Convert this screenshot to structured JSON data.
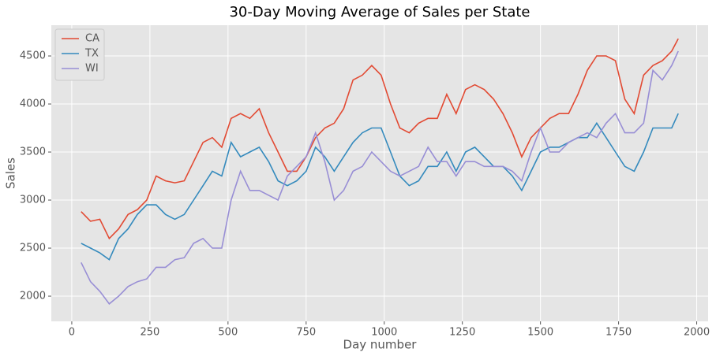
{
  "chart_data": {
    "type": "line",
    "title": "30-Day Moving Average of Sales per State",
    "x_label": "Day number",
    "y_label": "Sales",
    "x": [
      30,
      60,
      90,
      120,
      150,
      180,
      210,
      240,
      270,
      300,
      330,
      360,
      390,
      420,
      450,
      480,
      510,
      540,
      570,
      600,
      630,
      660,
      690,
      720,
      750,
      780,
      810,
      840,
      870,
      900,
      930,
      960,
      990,
      1020,
      1050,
      1080,
      1110,
      1140,
      1170,
      1200,
      1230,
      1260,
      1290,
      1320,
      1350,
      1380,
      1410,
      1440,
      1470,
      1500,
      1530,
      1560,
      1590,
      1620,
      1650,
      1680,
      1710,
      1740,
      1770,
      1800,
      1830,
      1860,
      1890,
      1920,
      1941
    ],
    "series": [
      {
        "name": "CA",
        "color": "#E24A33",
        "values": [
          2880,
          2780,
          2800,
          2600,
          2700,
          2850,
          2900,
          3000,
          3250,
          3200,
          3180,
          3200,
          3400,
          3600,
          3650,
          3550,
          3850,
          3900,
          3850,
          3950,
          3700,
          3500,
          3300,
          3300,
          3450,
          3650,
          3750,
          3800,
          3950,
          4250,
          4300,
          4400,
          4300,
          4000,
          3750,
          3700,
          3800,
          3850,
          3850,
          4100,
          3900,
          4150,
          4200,
          4150,
          4050,
          3900,
          3700,
          3450,
          3650,
          3750,
          3850,
          3900,
          3900,
          4100,
          4350,
          4500,
          4500,
          4450,
          4050,
          3900,
          4300,
          4400,
          4450,
          4550,
          4680
        ]
      },
      {
        "name": "TX",
        "color": "#348ABD",
        "values": [
          2550,
          2500,
          2450,
          2380,
          2600,
          2700,
          2850,
          2950,
          2950,
          2850,
          2800,
          2850,
          3000,
          3150,
          3300,
          3250,
          3600,
          3450,
          3500,
          3550,
          3400,
          3200,
          3150,
          3200,
          3300,
          3550,
          3450,
          3300,
          3450,
          3600,
          3700,
          3750,
          3750,
          3500,
          3250,
          3150,
          3200,
          3350,
          3350,
          3500,
          3300,
          3500,
          3550,
          3450,
          3350,
          3350,
          3250,
          3100,
          3300,
          3500,
          3550,
          3550,
          3600,
          3650,
          3650,
          3800,
          3650,
          3500,
          3350,
          3300,
          3500,
          3750,
          3750,
          3750,
          3900
        ]
      },
      {
        "name": "WI",
        "color": "#988ED5",
        "values": [
          2350,
          2150,
          2050,
          1920,
          2000,
          2100,
          2150,
          2180,
          2300,
          2300,
          2380,
          2400,
          2550,
          2600,
          2500,
          2500,
          3000,
          3300,
          3100,
          3100,
          3050,
          3000,
          3250,
          3350,
          3450,
          3700,
          3400,
          3000,
          3100,
          3300,
          3350,
          3500,
          3400,
          3300,
          3250,
          3300,
          3350,
          3550,
          3400,
          3400,
          3250,
          3400,
          3400,
          3350,
          3350,
          3350,
          3300,
          3200,
          3500,
          3750,
          3500,
          3500,
          3600,
          3650,
          3700,
          3650,
          3800,
          3900,
          3700,
          3700,
          3800,
          4350,
          4250,
          4400,
          4550
        ]
      }
    ],
    "xlim": [
      -65.5,
      2036.5
    ],
    "ylim": [
      1738,
      4820
    ],
    "xticks": [
      0,
      250,
      500,
      750,
      1000,
      1250,
      1500,
      1750,
      2000
    ],
    "yticks": [
      2000,
      2500,
      3000,
      3500,
      4000,
      4500
    ],
    "grid": true,
    "legend": "upper-left"
  }
}
